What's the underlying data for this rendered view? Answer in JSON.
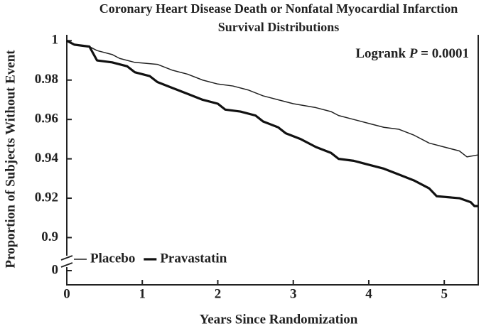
{
  "chart_data": {
    "type": "line",
    "title": [
      "Coronary Heart Disease Death or Nonfatal Myocardial Infarction",
      "Survival Distributions"
    ],
    "x_label": "Years Since Randomization",
    "y_label": "Proportion of Subjects Without Event",
    "annotation": [
      "Logrank ",
      "P",
      " = 0.0001"
    ],
    "xlim": [
      0,
      5.45
    ],
    "xticks": [
      0,
      1,
      2,
      3,
      4,
      5
    ],
    "ylim": [
      0.876,
      1.003
    ],
    "yticks": [
      0.9,
      0.92,
      0.94,
      0.96,
      0.98,
      1
    ],
    "y_break_tick": 0,
    "legend": "lower left",
    "series": [
      {
        "name": "Placebo",
        "color": "#222222",
        "line_width": 1.5,
        "x": [
          0,
          0.1,
          0.3,
          0.4,
          0.6,
          0.7,
          0.9,
          1.2,
          1.4,
          1.6,
          1.8,
          2.0,
          2.2,
          2.4,
          2.6,
          2.8,
          3.0,
          3.3,
          3.5,
          3.6,
          3.8,
          4.0,
          4.2,
          4.4,
          4.6,
          4.8,
          5.0,
          5.2,
          5.3,
          5.45
        ],
        "values": [
          1,
          0.998,
          0.997,
          0.995,
          0.993,
          0.991,
          0.989,
          0.988,
          0.985,
          0.983,
          0.98,
          0.978,
          0.977,
          0.975,
          0.972,
          0.97,
          0.968,
          0.966,
          0.964,
          0.962,
          0.96,
          0.958,
          0.956,
          0.955,
          0.952,
          0.948,
          0.946,
          0.944,
          0.941,
          0.942
        ]
      },
      {
        "name": "Pravastatin",
        "color": "#111111",
        "line_width": 3.2,
        "x": [
          0,
          0.1,
          0.3,
          0.4,
          0.6,
          0.8,
          0.9,
          1.1,
          1.2,
          1.4,
          1.6,
          1.8,
          2.0,
          2.1,
          2.3,
          2.5,
          2.6,
          2.8,
          2.9,
          3.1,
          3.3,
          3.5,
          3.6,
          3.8,
          4.0,
          4.2,
          4.4,
          4.6,
          4.8,
          4.9,
          5.2,
          5.35,
          5.4,
          5.45
        ],
        "values": [
          1,
          0.998,
          0.997,
          0.99,
          0.989,
          0.987,
          0.984,
          0.982,
          0.979,
          0.976,
          0.973,
          0.97,
          0.968,
          0.965,
          0.964,
          0.962,
          0.959,
          0.956,
          0.953,
          0.95,
          0.946,
          0.943,
          0.94,
          0.939,
          0.937,
          0.935,
          0.932,
          0.929,
          0.925,
          0.921,
          0.92,
          0.918,
          0.916,
          0.916
        ]
      }
    ]
  }
}
